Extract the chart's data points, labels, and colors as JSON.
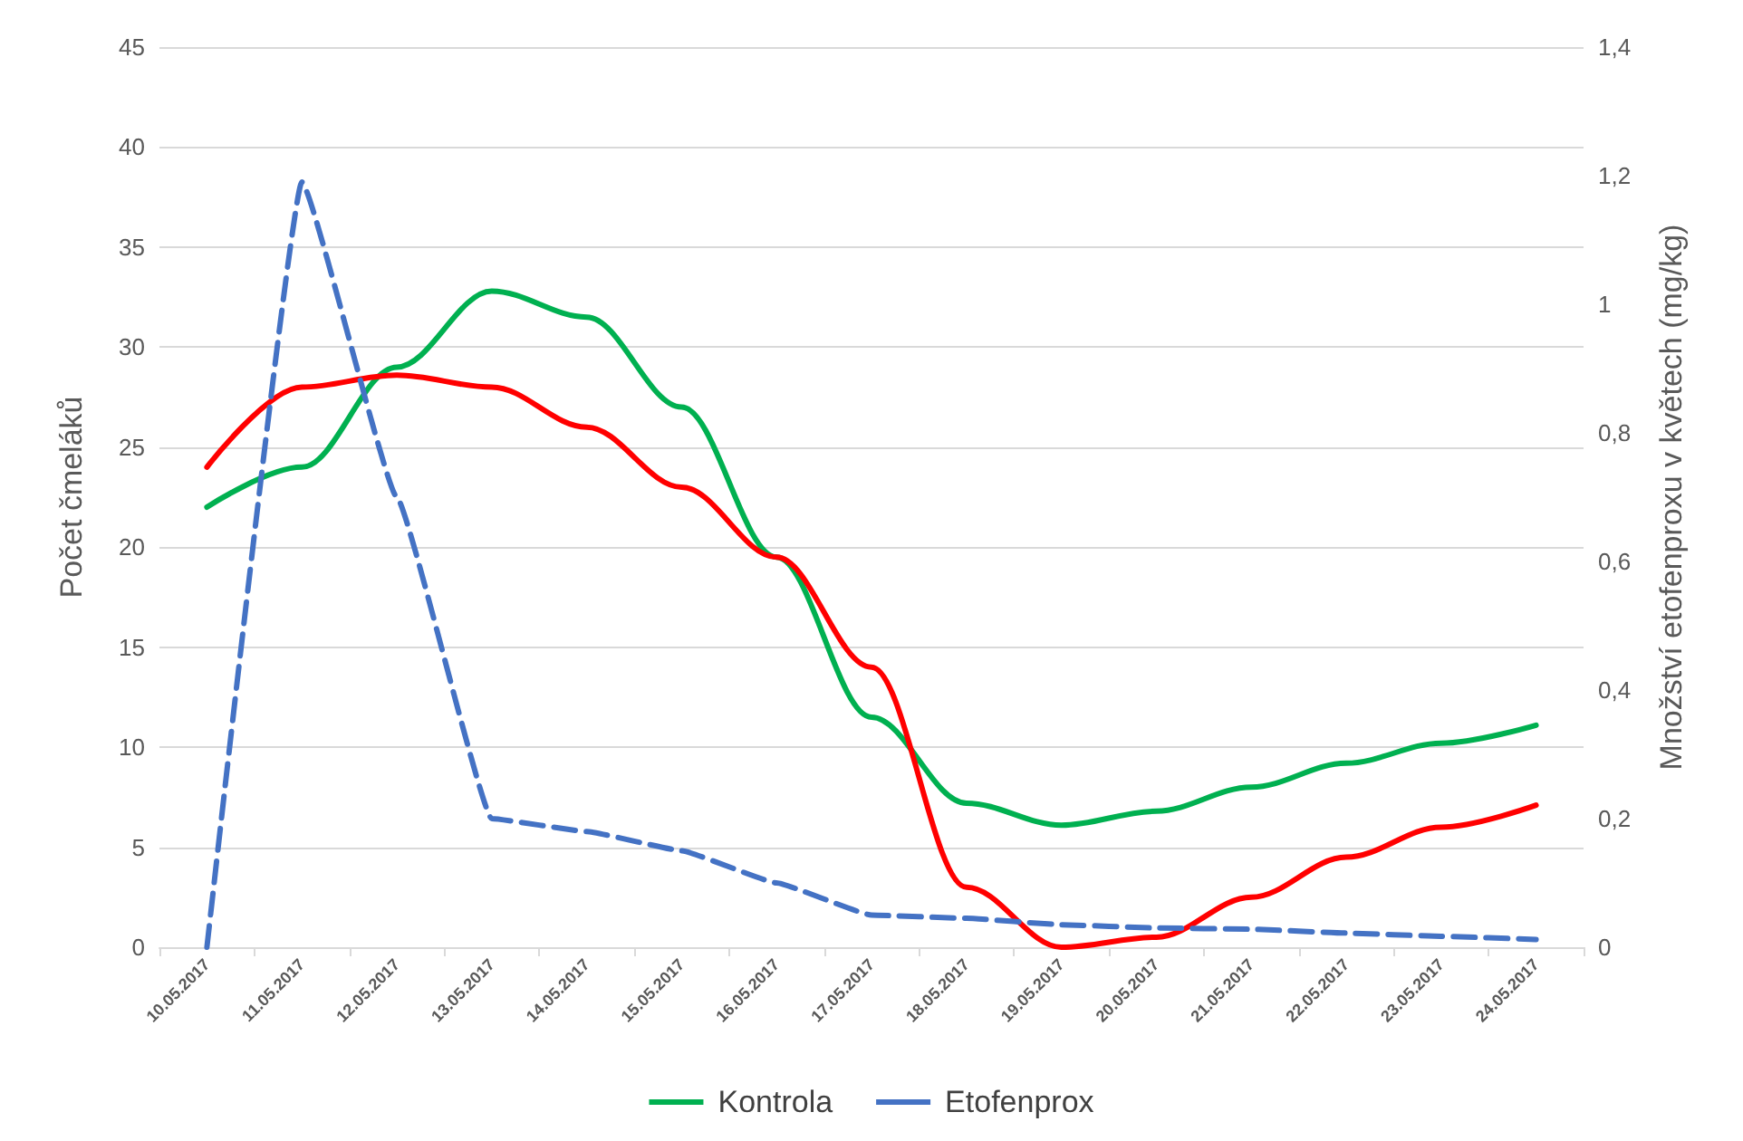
{
  "chart_data": {
    "type": "line",
    "ylabel": "Počet čmeláků",
    "y2label": "Množství etofenproxu v květech (mg/kg)",
    "categories": [
      "10.05.2017",
      "11.05.2017",
      "12.05.2017",
      "13.05.2017",
      "14.05.2017",
      "15.05.2017",
      "16.05.2017",
      "17.05.2017",
      "18.05.2017",
      "19.05.2017",
      "20.05.2017",
      "21.05.2017",
      "22.05.2017",
      "23.05.2017",
      "24.05.2017"
    ],
    "series": [
      {
        "name": "Kontrola",
        "color": "#00b050",
        "line_style": "solid",
        "values": [
          22,
          24,
          29,
          32.8,
          31.5,
          27,
          19.5,
          11.5,
          7.2,
          6.1,
          6.8,
          8,
          9.2,
          10.2,
          11.1
        ]
      },
      {
        "color": "#ff0000",
        "line_style": "solid",
        "values": [
          24,
          28,
          28.6,
          28,
          26,
          23,
          19.5,
          14,
          3,
          0,
          0.5,
          2.5,
          4.5,
          6,
          7.1
        ]
      },
      {
        "name": "Etofenprox",
        "color": "#4472c4",
        "line_style": "dashed",
        "axis": "y2",
        "values": [
          0,
          1.19,
          0.7,
          0.2,
          0.18,
          0.15,
          0.1,
          0.05,
          0.045,
          0.035,
          0.03,
          0.028,
          0.022,
          0.017,
          0.012
        ]
      }
    ],
    "ylim": [
      0,
      45
    ],
    "yticks": [
      0,
      5,
      10,
      15,
      20,
      25,
      30,
      35,
      40,
      45
    ],
    "y2lim": [
      0,
      1.4
    ],
    "y2ticks": [
      0,
      {
        "value": 0.2,
        "label": "0,2"
      },
      {
        "value": 0.4,
        "label": "0,4"
      },
      {
        "value": 0.6,
        "label": "0,6"
      },
      {
        "value": 0.8,
        "label": "0,8"
      },
      1,
      {
        "value": 1.2,
        "label": "1,2"
      },
      {
        "value": 1.4,
        "label": "1,4"
      }
    ],
    "grid": "y",
    "legend": "bottom",
    "marker": "none"
  }
}
